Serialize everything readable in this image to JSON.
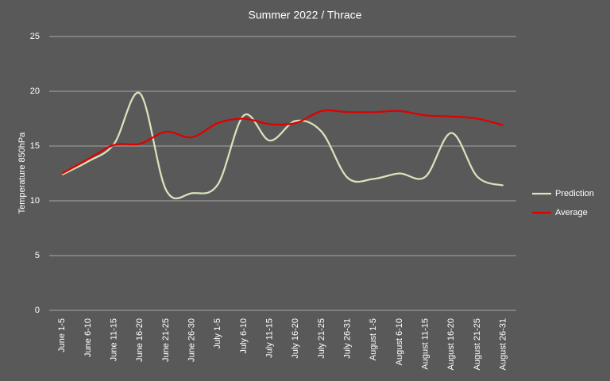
{
  "chart_data": {
    "type": "line",
    "title": "Summer 2022 / Thrace",
    "y_label": "Temperature 850hPa",
    "categories": [
      "June 1-5",
      "June 6-10",
      "June 11-15",
      "June 16-20",
      "June 21-25",
      "June 26-30",
      "July 1-5",
      "July 6-10",
      "July 11-15",
      "July 16-20",
      "July 21-25",
      "July 26-31",
      "August 1-5",
      "August 6-10",
      "August 11-15",
      "August 16-20",
      "August 21-25",
      "August 26-31"
    ],
    "series": [
      {
        "name": "Prediction",
        "color": "#d7e4bd",
        "values": [
          12.4,
          13.6,
          15.2,
          19.8,
          11.0,
          10.7,
          11.5,
          17.8,
          15.5,
          17.3,
          16.3,
          12.1,
          12.0,
          12.5,
          12.2,
          16.2,
          12.2,
          11.4
        ]
      },
      {
        "name": "Average",
        "color": "#e00000",
        "values": [
          12.5,
          13.8,
          15.1,
          15.2,
          16.3,
          15.8,
          17.1,
          17.5,
          17.0,
          17.1,
          18.2,
          18.1,
          18.1,
          18.2,
          17.8,
          17.7,
          17.5,
          16.9
        ]
      }
    ],
    "ylim": [
      0,
      25
    ],
    "yticks": [
      0,
      5,
      10,
      15,
      20,
      25
    ],
    "grid": true,
    "legend": "right"
  }
}
